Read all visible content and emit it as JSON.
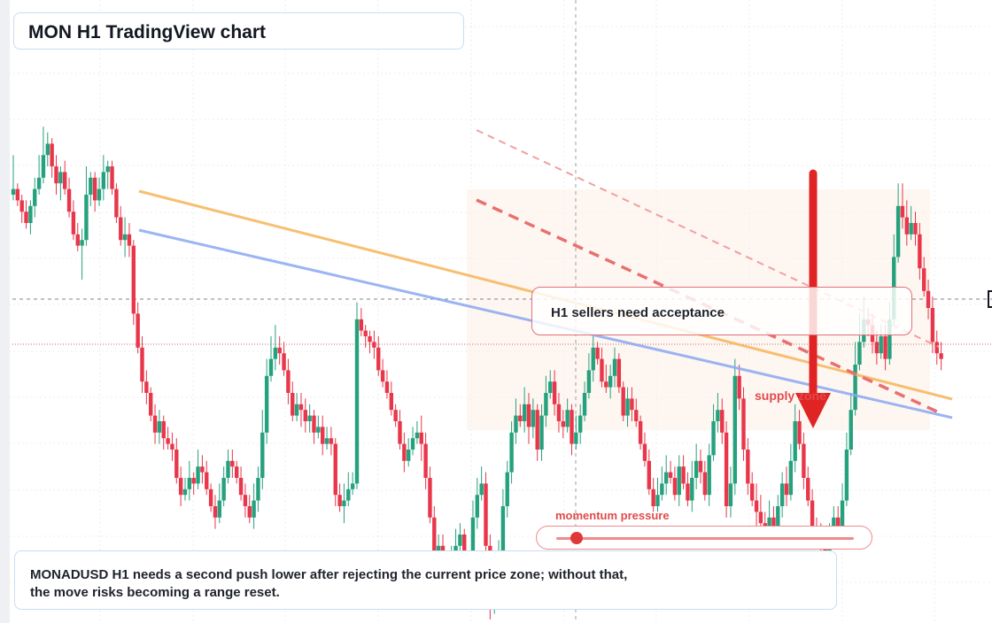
{
  "title": "MON H1 TradingView chart",
  "note": "H1 sellers need acceptance",
  "zone_label": "supply zone",
  "momentum": {
    "label": "momentum pressure",
    "level": 0.07
  },
  "description": "MONADUSD H1 needs a second push lower after rejecting the current price zone; without that, the move risks becoming a range reset.",
  "colors": {
    "up": "#26a17d",
    "down": "#e8364a",
    "orange_line": "#f6b55a",
    "blue_line": "#8aa8f2",
    "arrow": "#e02424",
    "zone": "#fdeee6"
  },
  "chart_data": {
    "type": "candlestick",
    "symbol": "MONADUSD",
    "timeframe": "H1",
    "title": "MON H1 TradingView chart",
    "ylim": [
      0,
      100
    ],
    "candles_note": "relative price units (no price axis labels visible)",
    "candles": [
      [
        75,
        76,
        82,
        74
      ],
      [
        76,
        74,
        77,
        73
      ],
      [
        74,
        72,
        75,
        70
      ],
      [
        72,
        70,
        74,
        69
      ],
      [
        70,
        73,
        74,
        68
      ],
      [
        73,
        76,
        78,
        71
      ],
      [
        76,
        78,
        82,
        75
      ],
      [
        78,
        82,
        87,
        77
      ],
      [
        82,
        84,
        86,
        80
      ],
      [
        84,
        80,
        85,
        78
      ],
      [
        80,
        77,
        82,
        75
      ],
      [
        77,
        79,
        80,
        74
      ],
      [
        79,
        76,
        81,
        75
      ],
      [
        76,
        72,
        78,
        71
      ],
      [
        72,
        68,
        74,
        67
      ],
      [
        68,
        66,
        70,
        65
      ],
      [
        66,
        67,
        69,
        60
      ],
      [
        67,
        75,
        80,
        66
      ],
      [
        75,
        78,
        79,
        73
      ],
      [
        78,
        74,
        79,
        72
      ],
      [
        74,
        76,
        78,
        73
      ],
      [
        76,
        79,
        82,
        74
      ],
      [
        79,
        80,
        81,
        76
      ],
      [
        80,
        76,
        81,
        75
      ],
      [
        76,
        71,
        77,
        70
      ],
      [
        71,
        67,
        73,
        66
      ],
      [
        67,
        68,
        71,
        64
      ],
      [
        68,
        66,
        70,
        64
      ],
      [
        66,
        54,
        67,
        52
      ],
      [
        54,
        48,
        56,
        47
      ],
      [
        48,
        42,
        50,
        40
      ],
      [
        42,
        40,
        44,
        38
      ],
      [
        40,
        36,
        41,
        35
      ],
      [
        36,
        33,
        38,
        31
      ],
      [
        33,
        35,
        37,
        31
      ],
      [
        35,
        32,
        36,
        30
      ],
      [
        32,
        31,
        34,
        30
      ],
      [
        31,
        30,
        33,
        28
      ],
      [
        30,
        25,
        32,
        24
      ],
      [
        25,
        22,
        27,
        20
      ],
      [
        22,
        23,
        25,
        21
      ],
      [
        23,
        25,
        28,
        21
      ],
      [
        25,
        24,
        26,
        22
      ],
      [
        24,
        27,
        30,
        23
      ],
      [
        27,
        26,
        29,
        24
      ],
      [
        26,
        23,
        28,
        22
      ],
      [
        23,
        20,
        24,
        19
      ],
      [
        20,
        18,
        22,
        16
      ],
      [
        18,
        21,
        24,
        17
      ],
      [
        21,
        25,
        27,
        20
      ],
      [
        25,
        28,
        30,
        24
      ],
      [
        28,
        27,
        30,
        25
      ],
      [
        27,
        25,
        28,
        24
      ],
      [
        25,
        22,
        27,
        21
      ],
      [
        22,
        20,
        24,
        18
      ],
      [
        20,
        18,
        22,
        17
      ],
      [
        18,
        21,
        24,
        16
      ],
      [
        21,
        25,
        27,
        19
      ],
      [
        25,
        33,
        37,
        23
      ],
      [
        33,
        43,
        46,
        31
      ],
      [
        43,
        46,
        50,
        42
      ],
      [
        46,
        48,
        52,
        44
      ],
      [
        48,
        47,
        50,
        45
      ],
      [
        47,
        44,
        49,
        43
      ],
      [
        44,
        40,
        46,
        38
      ],
      [
        40,
        36,
        42,
        35
      ],
      [
        36,
        38,
        40,
        35
      ],
      [
        38,
        37,
        40,
        34
      ],
      [
        37,
        35,
        39,
        33
      ],
      [
        35,
        36,
        38,
        33
      ],
      [
        36,
        33,
        37,
        31
      ],
      [
        33,
        34,
        36,
        32
      ],
      [
        34,
        31,
        36,
        29
      ],
      [
        31,
        32,
        34,
        30
      ],
      [
        32,
        31,
        34,
        29
      ],
      [
        31,
        22,
        32,
        20
      ],
      [
        22,
        20,
        24,
        19
      ],
      [
        20,
        21,
        24,
        17
      ],
      [
        21,
        23,
        26,
        20
      ],
      [
        23,
        24,
        26,
        22
      ],
      [
        24,
        53,
        56,
        23
      ],
      [
        53,
        51,
        55,
        50
      ],
      [
        51,
        50,
        52,
        48
      ],
      [
        50,
        49,
        51,
        47
      ],
      [
        49,
        48,
        51,
        46
      ],
      [
        48,
        44,
        50,
        43
      ],
      [
        44,
        42,
        46,
        41
      ],
      [
        42,
        40,
        44,
        39
      ],
      [
        40,
        37,
        42,
        36
      ],
      [
        37,
        35,
        38,
        34
      ],
      [
        35,
        31,
        37,
        30
      ],
      [
        31,
        28,
        33,
        26
      ],
      [
        28,
        30,
        32,
        27
      ],
      [
        30,
        32,
        34,
        29
      ],
      [
        32,
        33,
        35,
        31
      ],
      [
        33,
        31,
        36,
        28
      ],
      [
        31,
        25,
        33,
        23
      ],
      [
        25,
        18,
        27,
        17
      ],
      [
        18,
        11,
        20,
        10
      ],
      [
        11,
        13,
        15,
        8
      ],
      [
        13,
        9,
        15,
        6
      ],
      [
        9,
        5,
        11,
        3
      ],
      [
        5,
        10,
        13,
        2
      ],
      [
        10,
        13,
        16,
        9
      ],
      [
        13,
        15,
        17,
        11
      ],
      [
        15,
        7,
        16,
        5
      ],
      [
        7,
        4,
        9,
        3
      ],
      [
        4,
        18,
        21,
        3
      ],
      [
        18,
        22,
        25,
        16
      ],
      [
        22,
        24,
        27,
        21
      ],
      [
        24,
        13,
        26,
        12
      ],
      [
        13,
        3,
        15,
        0
      ],
      [
        3,
        6,
        8,
        1
      ],
      [
        6,
        12,
        14,
        4
      ],
      [
        12,
        20,
        23,
        11
      ],
      [
        20,
        26,
        28,
        18
      ],
      [
        26,
        33,
        35,
        24
      ],
      [
        33,
        36,
        39,
        31
      ],
      [
        36,
        35,
        38,
        34
      ],
      [
        35,
        38,
        41,
        33
      ],
      [
        38,
        34,
        40,
        31
      ],
      [
        34,
        37,
        39,
        32
      ],
      [
        37,
        30,
        38,
        28
      ],
      [
        30,
        36,
        38,
        28
      ],
      [
        36,
        40,
        43,
        34
      ],
      [
        40,
        42,
        44,
        39
      ],
      [
        42,
        38,
        44,
        36
      ],
      [
        38,
        35,
        40,
        33
      ],
      [
        35,
        34,
        37,
        32
      ],
      [
        34,
        37,
        39,
        33
      ],
      [
        37,
        31,
        38,
        29
      ],
      [
        31,
        33,
        36,
        30
      ],
      [
        33,
        36,
        38,
        31
      ],
      [
        36,
        40,
        42,
        35
      ],
      [
        40,
        44,
        47,
        39
      ],
      [
        44,
        48,
        50,
        42
      ],
      [
        48,
        46,
        49,
        45
      ],
      [
        46,
        42,
        48,
        41
      ],
      [
        42,
        41,
        45,
        40
      ],
      [
        41,
        43,
        45,
        39
      ],
      [
        43,
        46,
        48,
        41
      ],
      [
        46,
        41,
        47,
        40
      ],
      [
        41,
        36,
        42,
        35
      ],
      [
        36,
        39,
        41,
        34
      ],
      [
        39,
        37,
        41,
        35
      ],
      [
        37,
        35,
        39,
        34
      ],
      [
        35,
        31,
        36,
        30
      ],
      [
        31,
        28,
        33,
        27
      ],
      [
        28,
        23,
        30,
        22
      ],
      [
        23,
        20,
        25,
        19
      ],
      [
        20,
        22,
        25,
        19
      ],
      [
        22,
        24,
        27,
        21
      ],
      [
        24,
        26,
        29,
        22
      ],
      [
        26,
        25,
        28,
        24
      ],
      [
        25,
        22,
        27,
        21
      ],
      [
        22,
        27,
        29,
        20
      ],
      [
        27,
        24,
        29,
        23
      ],
      [
        24,
        21,
        26,
        20
      ],
      [
        21,
        25,
        28,
        19
      ],
      [
        25,
        28,
        31,
        23
      ],
      [
        28,
        26,
        30,
        24
      ],
      [
        26,
        22,
        28,
        21
      ],
      [
        22,
        29,
        31,
        20
      ],
      [
        29,
        35,
        38,
        28
      ],
      [
        35,
        37,
        40,
        33
      ],
      [
        37,
        33,
        39,
        31
      ],
      [
        33,
        20,
        35,
        18
      ],
      [
        20,
        24,
        27,
        18
      ],
      [
        24,
        43,
        46,
        22
      ],
      [
        43,
        39,
        45,
        37
      ],
      [
        39,
        30,
        41,
        28
      ],
      [
        30,
        24,
        32,
        22
      ],
      [
        24,
        21,
        26,
        20
      ],
      [
        21,
        19,
        24,
        15
      ],
      [
        19,
        17,
        22,
        16
      ],
      [
        17,
        16,
        19,
        13
      ],
      [
        16,
        18,
        21,
        15
      ],
      [
        18,
        15,
        20,
        14
      ],
      [
        15,
        20,
        22,
        14
      ],
      [
        20,
        24,
        26,
        18
      ],
      [
        24,
        22,
        27,
        20
      ],
      [
        22,
        28,
        31,
        21
      ],
      [
        28,
        35,
        38,
        26
      ],
      [
        35,
        31,
        37,
        30
      ],
      [
        31,
        25,
        33,
        23
      ],
      [
        25,
        21,
        27,
        20
      ],
      [
        21,
        16,
        23,
        15
      ],
      [
        16,
        15,
        18,
        14
      ],
      [
        15,
        13,
        17,
        12
      ],
      [
        13,
        12,
        15,
        10
      ],
      [
        12,
        14,
        17,
        11
      ],
      [
        14,
        18,
        20,
        13
      ],
      [
        18,
        16,
        20,
        14
      ],
      [
        16,
        21,
        24,
        15
      ],
      [
        21,
        30,
        33,
        20
      ],
      [
        30,
        37,
        40,
        29
      ],
      [
        37,
        45,
        49,
        36
      ],
      [
        45,
        49,
        54,
        44
      ],
      [
        49,
        53,
        57,
        48
      ],
      [
        53,
        52,
        55,
        50
      ],
      [
        52,
        49,
        54,
        47
      ],
      [
        49,
        47,
        51,
        45
      ],
      [
        47,
        50,
        52,
        46
      ],
      [
        50,
        46,
        52,
        44
      ],
      [
        46,
        53,
        56,
        45
      ],
      [
        53,
        64,
        68,
        52
      ],
      [
        64,
        73,
        77,
        63
      ],
      [
        73,
        71,
        77,
        69
      ],
      [
        71,
        68,
        74,
        66
      ],
      [
        68,
        70,
        73,
        67
      ],
      [
        70,
        68,
        72,
        66
      ],
      [
        68,
        62,
        70,
        60
      ],
      [
        62,
        58,
        64,
        57
      ],
      [
        58,
        55,
        60,
        53
      ],
      [
        55,
        49,
        57,
        47
      ],
      [
        49,
        47,
        51,
        45
      ],
      [
        47,
        46,
        49,
        44
      ]
    ],
    "lines": [
      {
        "name": "",
        "color": "#f6b55a",
        "from": [
          7,
          63
        ],
        "to": [
          224,
          30
        ]
      },
      {
        "name": "",
        "color": "#8aa8f2",
        "from": [
          7,
          56
        ],
        "to": [
          224,
          24
        ]
      }
    ],
    "zone": {
      "label": "supply zone",
      "x_range": [
        107,
        218
      ],
      "y_range": [
        54,
        21
      ]
    }
  }
}
